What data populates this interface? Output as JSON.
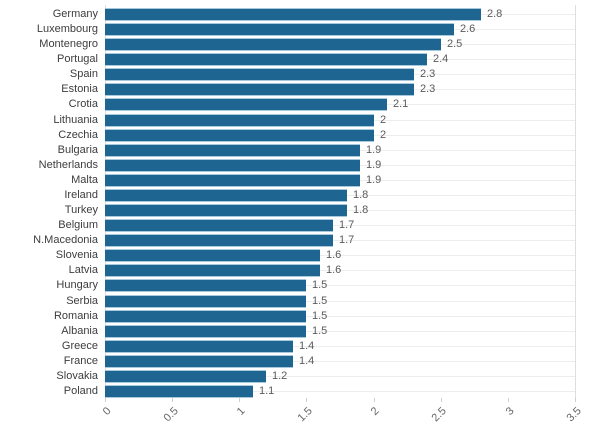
{
  "chart_data": {
    "type": "bar",
    "orientation": "horizontal",
    "title": "",
    "categories": [
      "Germany",
      "Luxembourg",
      "Montenegro",
      "Portugal",
      "Spain",
      "Estonia",
      "Crotia",
      "Lithuania",
      "Czechia",
      "Bulgaria",
      "Netherlands",
      "Malta",
      "Ireland",
      "Turkey",
      "Belgium",
      "N.Macedonia",
      "Slovenia",
      "Latvia",
      "Hungary",
      "Serbia",
      "Romania",
      "Albania",
      "Greece",
      "France",
      "Slovakia",
      "Poland"
    ],
    "values": [
      2.8,
      2.6,
      2.5,
      2.4,
      2.3,
      2.3,
      2.1,
      2,
      2,
      1.9,
      1.9,
      1.9,
      1.8,
      1.8,
      1.7,
      1.7,
      1.6,
      1.6,
      1.5,
      1.5,
      1.5,
      1.5,
      1.4,
      1.4,
      1.2,
      1.1
    ],
    "value_labels": [
      "2.8",
      "2.6",
      "2.5",
      "2.4",
      "2.3",
      "2.3",
      "2.1",
      "2",
      "2",
      "1.9",
      "1.9",
      "1.9",
      "1.8",
      "1.8",
      "1.7",
      "1.7",
      "1.6",
      "1.6",
      "1.5",
      "1.5",
      "1.5",
      "1.5",
      "1.4",
      "1.4",
      "1.2",
      "1.1"
    ],
    "x_ticks": [
      "0",
      "0.5",
      "1",
      "1.5",
      "2",
      "2.5",
      "3",
      "3.5"
    ],
    "x_tick_values": [
      0,
      0.5,
      1,
      1.5,
      2,
      2.5,
      3,
      3.5
    ],
    "xlim": [
      0,
      3.5
    ],
    "ylabel": "",
    "xlabel": "",
    "legend": "none",
    "grid": "light horizontal line per row, hidden behind bars",
    "colors": {
      "bar": "#1f6591",
      "bar_edge": "#a8c9dc",
      "value_label": "#595a5c",
      "category_label": "#3d3d3d",
      "tick_label": "#666666",
      "gridline": "#ededed",
      "axis_line": "#dedede",
      "tick_mark": "#cfcfcf",
      "background": "#ffffff"
    }
  }
}
